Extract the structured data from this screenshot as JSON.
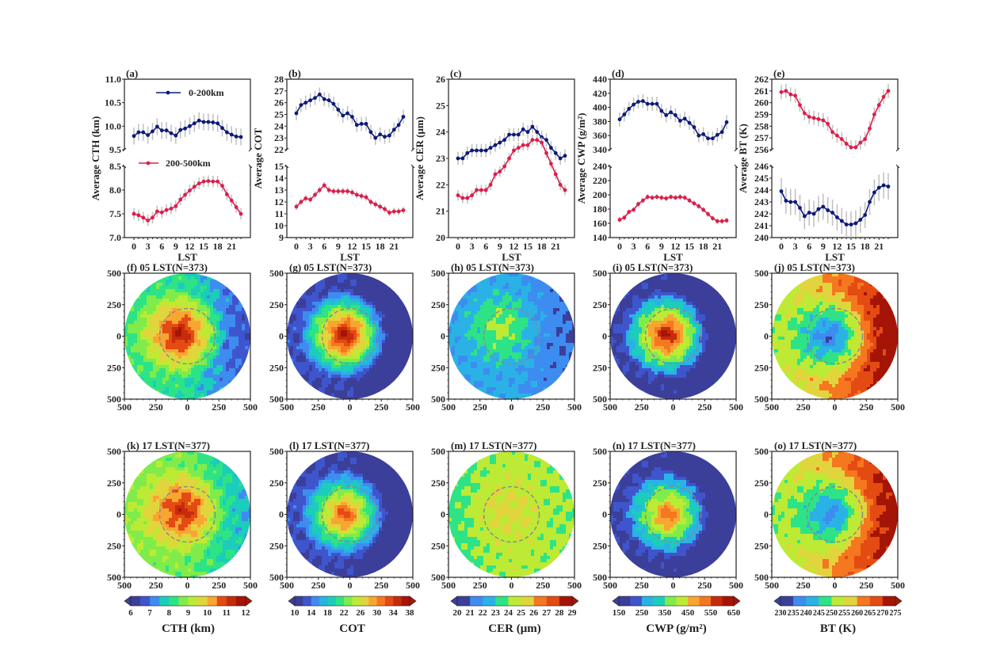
{
  "chart_data": {
    "type": "line",
    "xlabel": "LST",
    "x": [
      0,
      1,
      2,
      3,
      4,
      5,
      6,
      7,
      8,
      9,
      10,
      11,
      12,
      13,
      14,
      15,
      16,
      17,
      18,
      19,
      20,
      21,
      22,
      23
    ],
    "xticks": [
      0,
      3,
      6,
      9,
      12,
      15,
      18,
      21
    ],
    "legend": [
      {
        "name": "0-200km",
        "color": "#0d1a7a"
      },
      {
        "name": "200-500km",
        "color": "#dc1e4b"
      }
    ],
    "errorbar_color": "#bfbfbf",
    "line_panels": [
      {
        "label": "(a)",
        "ylabel": "Average CTH (km)",
        "broken_axis": true,
        "upper": {
          "ylim": [
            9.5,
            11.0
          ],
          "yticks": [
            "9.5",
            "10.0",
            "10.5",
            "11.0"
          ],
          "series": "0-200km",
          "values": [
            9.79,
            9.87,
            9.87,
            9.81,
            9.89,
            9.99,
            9.91,
            9.91,
            9.85,
            9.8,
            9.92,
            9.95,
            10.0,
            10.06,
            10.12,
            10.09,
            10.09,
            10.08,
            10.06,
            9.96,
            9.87,
            9.82,
            9.78,
            9.77
          ],
          "err": 0.18
        },
        "lower": {
          "ylim": [
            7.0,
            8.5
          ],
          "yticks": [
            "7.0",
            "7.5",
            "8.0",
            "8.5"
          ],
          "series": "200-500km",
          "values": [
            7.5,
            7.47,
            7.42,
            7.36,
            7.42,
            7.55,
            7.53,
            7.58,
            7.61,
            7.66,
            7.8,
            7.9,
            7.99,
            8.07,
            8.14,
            8.18,
            8.19,
            8.18,
            8.18,
            8.09,
            7.91,
            7.78,
            7.64,
            7.5
          ],
          "err": 0.12
        }
      },
      {
        "label": "(b)",
        "ylabel": "Average COT",
        "broken_axis": true,
        "upper": {
          "ylim": [
            22,
            28
          ],
          "yticks": [
            "22",
            "23",
            "24",
            "25",
            "26",
            "27",
            "28"
          ],
          "series": "0-200km",
          "values": [
            25.1,
            25.8,
            26.0,
            26.2,
            26.4,
            26.7,
            26.3,
            26.2,
            25.9,
            25.4,
            24.9,
            25.1,
            24.8,
            24.1,
            24.2,
            24.2,
            23.5,
            23.0,
            23.3,
            23.1,
            23.2,
            23.7,
            24.1,
            24.8
          ],
          "err": 0.6
        },
        "lower": {
          "ylim": [
            9,
            15
          ],
          "yticks": [
            "9",
            "10",
            "11",
            "12",
            "13",
            "14",
            "15"
          ],
          "series": "200-500km",
          "values": [
            11.6,
            12.0,
            12.3,
            12.2,
            12.6,
            13.0,
            13.4,
            13.0,
            12.9,
            12.9,
            12.9,
            12.9,
            12.8,
            12.6,
            12.5,
            12.4,
            12.0,
            11.8,
            11.6,
            11.4,
            11.1,
            11.2,
            11.2,
            11.3
          ],
          "err": 0.3
        }
      },
      {
        "label": "(c)",
        "ylabel": "Average CER (μm)",
        "broken_axis": false,
        "single": {
          "ylim": [
            20,
            26
          ],
          "yticks": [
            "20",
            "21",
            "22",
            "23",
            "24",
            "25",
            "26"
          ],
          "series": [
            {
              "name": "0-200km",
              "values": [
                23.0,
                23.0,
                23.2,
                23.3,
                23.3,
                23.3,
                23.3,
                23.4,
                23.5,
                23.6,
                23.7,
                23.9,
                23.9,
                23.9,
                24.1,
                24.0,
                24.2,
                24.0,
                23.8,
                23.7,
                23.4,
                23.2,
                23.0,
                23.1
              ],
              "err": 0.25
            },
            {
              "name": "200-500km",
              "values": [
                21.6,
                21.5,
                21.5,
                21.6,
                21.8,
                21.8,
                21.8,
                22.0,
                22.4,
                22.5,
                22.7,
                23.0,
                23.3,
                23.4,
                23.5,
                23.5,
                23.7,
                23.7,
                23.6,
                23.2,
                22.8,
                22.4,
                22.0,
                21.8
              ],
              "err": 0.2
            }
          ]
        }
      },
      {
        "label": "(d)",
        "ylabel": "Average CWP (g/m²)",
        "broken_axis": true,
        "upper": {
          "ylim": [
            340,
            440
          ],
          "yticks": [
            "340",
            "360",
            "380",
            "400",
            "420",
            "440"
          ],
          "series": "0-200km",
          "values": [
            383,
            390,
            398,
            404,
            408,
            409,
            405,
            405,
            405,
            395,
            389,
            393,
            389,
            381,
            384,
            378,
            372,
            360,
            362,
            356,
            356,
            361,
            365,
            379
          ],
          "err": 10
        },
        "lower": {
          "ylim": [
            140,
            240
          ],
          "yticks": [
            "140",
            "160",
            "180",
            "200",
            "220",
            "240"
          ],
          "series": "200-500km",
          "values": [
            165,
            168,
            176,
            179,
            187,
            192,
            197,
            196,
            197,
            196,
            195,
            197,
            196,
            197,
            196,
            192,
            188,
            184,
            179,
            173,
            167,
            163,
            163,
            164
          ],
          "err": 4
        }
      },
      {
        "label": "(e)",
        "ylabel": "Average BT (K)",
        "broken_axis": true,
        "upper": {
          "ylim": [
            256,
            262
          ],
          "yticks": [
            "256",
            "257",
            "258",
            "259",
            "260",
            "261",
            "262"
          ],
          "series": "200-500km",
          "values": [
            260.9,
            261.0,
            260.7,
            260.6,
            259.8,
            259.1,
            258.8,
            258.7,
            258.6,
            258.5,
            258.2,
            257.5,
            257.2,
            256.9,
            256.5,
            256.2,
            256.2,
            256.6,
            256.9,
            257.8,
            259.0,
            259.8,
            260.5,
            261.0
          ],
          "err": 0.6
        },
        "upper_color_series": "200-500km",
        "lower": {
          "ylim": [
            240,
            246
          ],
          "yticks": [
            "240",
            "241",
            "242",
            "243",
            "244",
            "245",
            "246"
          ],
          "series": "0-200km",
          "values": [
            243.9,
            243.1,
            243.0,
            243.0,
            242.5,
            241.8,
            242.1,
            242.0,
            242.4,
            242.6,
            242.3,
            242.1,
            241.7,
            241.4,
            241.1,
            241.1,
            241.2,
            241.5,
            241.9,
            243.0,
            243.8,
            244.2,
            244.4,
            244.3
          ],
          "err": 1.1
        }
      }
    ],
    "map_axis_ticks": [
      "500",
      "250",
      "0",
      "250",
      "500"
    ],
    "map_rows": [
      {
        "time": "05 LST",
        "n": "N=373",
        "titles": [
          "(f) 05 LST(N=373)",
          "(g) 05 LST(N=373)",
          "(h) 05 LST(N=373)",
          "(i) 05 LST(N=373)",
          "(j) 05 LST(N=373)"
        ]
      },
      {
        "time": "17 LST",
        "n": "N=377",
        "titles": [
          "(k) 17 LST(N=377)",
          "(l) 17 LST(N=377)",
          "(m) 17 LST(N=377)",
          "(n) 17 LST(N=377)",
          "(o) 17 LST(N=377)"
        ]
      }
    ],
    "dashed_circle_radius_km": 220,
    "colorbars": [
      {
        "label": "CTH (km)",
        "ticks": [
          "6",
          "7",
          "8",
          "9",
          "10",
          "11",
          "12"
        ],
        "levels": 12,
        "range": [
          6,
          12
        ]
      },
      {
        "label": "COT",
        "ticks": [
          "10",
          "14",
          "18",
          "22",
          "26",
          "30",
          "34",
          "38"
        ],
        "levels": 14,
        "range": [
          10,
          38
        ]
      },
      {
        "label": "CER (μm)",
        "ticks": [
          "20",
          "21",
          "22",
          "23",
          "24",
          "25",
          "26",
          "27",
          "28",
          "29"
        ],
        "levels": 9,
        "range": [
          20,
          29
        ]
      },
      {
        "label": "CWP (g/m²)",
        "ticks": [
          "150",
          "250",
          "350",
          "450",
          "550",
          "650"
        ],
        "levels": 10,
        "range": [
          150,
          650
        ]
      },
      {
        "label": "BT (K)",
        "ticks": [
          "230",
          "235",
          "240",
          "245",
          "250",
          "255",
          "260",
          "265",
          "270",
          "275"
        ],
        "levels": 9,
        "range": [
          230,
          275
        ]
      }
    ]
  }
}
